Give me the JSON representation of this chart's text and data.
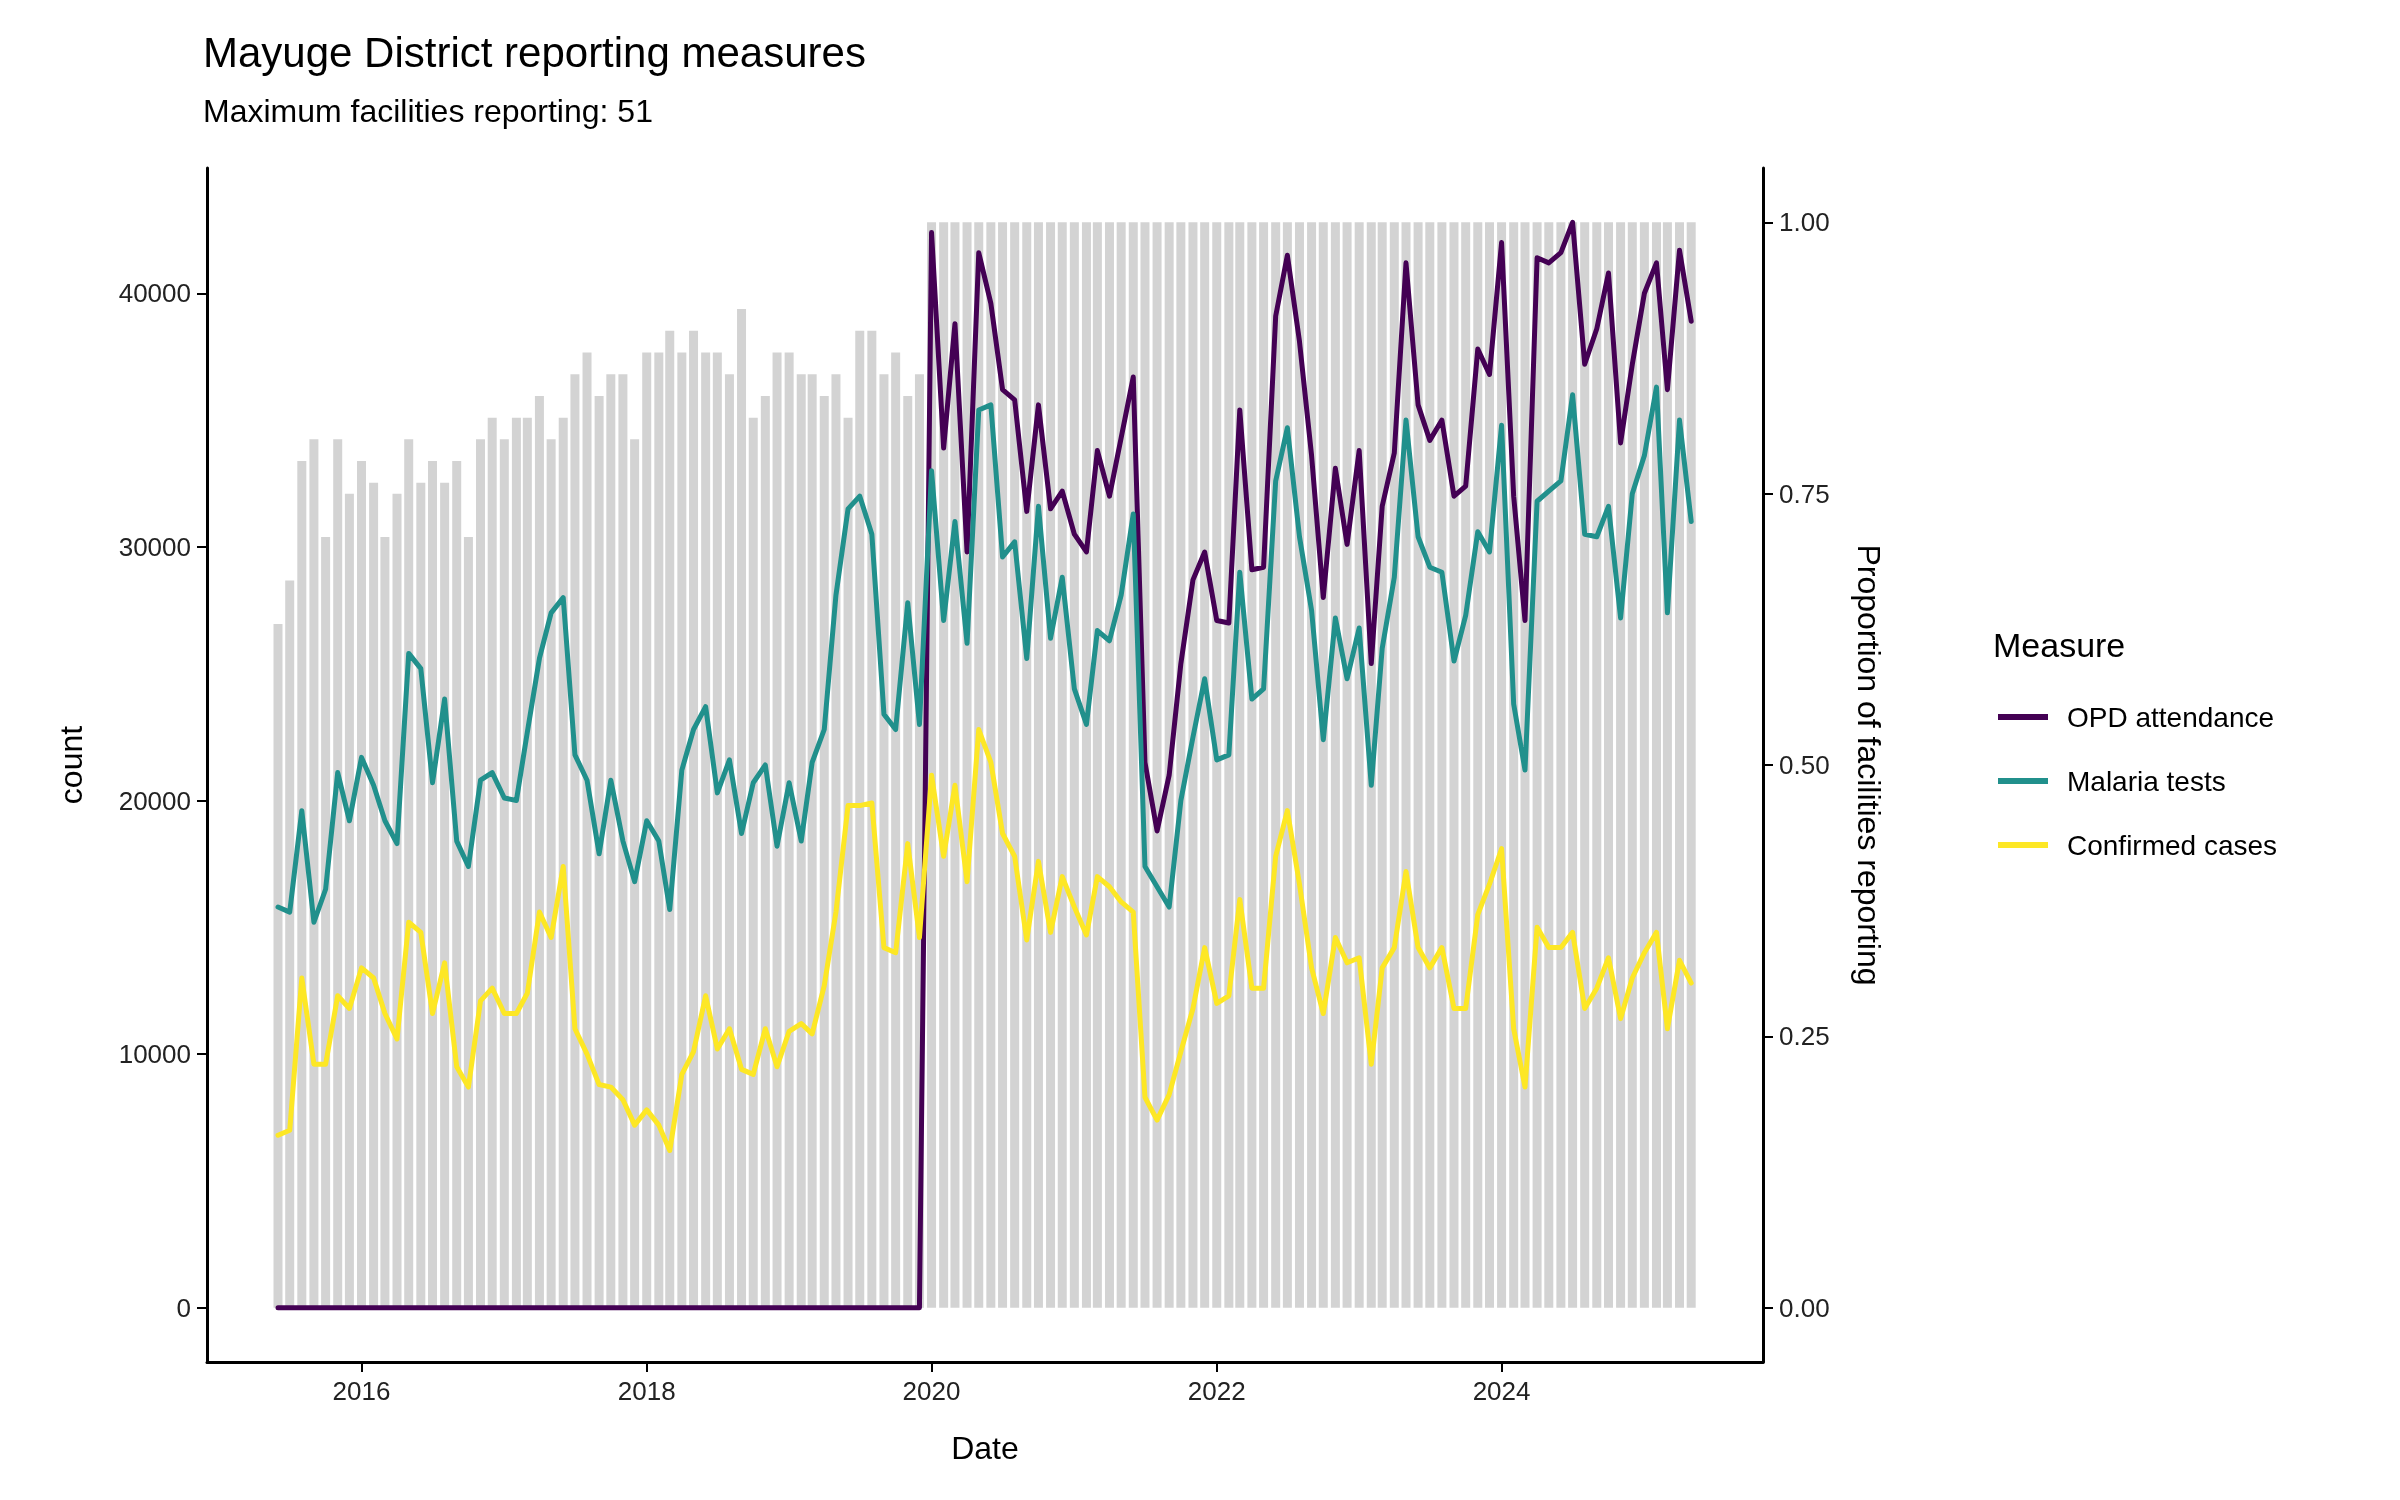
{
  "chart_data": {
    "type": "line",
    "title": "Mayuge District reporting measures",
    "subtitle": "Maximum facilities reporting: 51",
    "xlabel": "Date",
    "ylabel": "count",
    "y2label": "Proportion of facilities reporting",
    "legend_title": "Measure",
    "x": [
      "2015-06",
      "2015-07",
      "2015-08",
      "2015-09",
      "2015-10",
      "2015-11",
      "2015-12",
      "2016-01",
      "2016-02",
      "2016-03",
      "2016-04",
      "2016-05",
      "2016-06",
      "2016-07",
      "2016-08",
      "2016-09",
      "2016-10",
      "2016-11",
      "2016-12",
      "2017-01",
      "2017-02",
      "2017-03",
      "2017-04",
      "2017-05",
      "2017-06",
      "2017-07",
      "2017-08",
      "2017-09",
      "2017-10",
      "2017-11",
      "2017-12",
      "2018-01",
      "2018-02",
      "2018-03",
      "2018-04",
      "2018-05",
      "2018-06",
      "2018-07",
      "2018-08",
      "2018-09",
      "2018-10",
      "2018-11",
      "2018-12",
      "2019-01",
      "2019-02",
      "2019-03",
      "2019-04",
      "2019-05",
      "2019-06",
      "2019-07",
      "2019-08",
      "2019-09",
      "2019-10",
      "2019-11",
      "2019-12",
      "2020-01",
      "2020-02",
      "2020-03",
      "2020-04",
      "2020-05",
      "2020-06",
      "2020-07",
      "2020-08",
      "2020-09",
      "2020-10",
      "2020-11",
      "2020-12",
      "2021-01",
      "2021-02",
      "2021-03",
      "2021-04",
      "2021-05",
      "2021-06",
      "2021-07",
      "2021-08",
      "2021-09",
      "2021-10",
      "2021-11",
      "2021-12",
      "2022-01",
      "2022-02",
      "2022-03",
      "2022-04",
      "2022-05",
      "2022-06",
      "2022-07",
      "2022-08",
      "2022-09",
      "2022-10",
      "2022-11",
      "2022-12",
      "2023-01",
      "2023-02",
      "2023-03",
      "2023-04",
      "2023-05",
      "2023-06",
      "2023-07",
      "2023-08",
      "2023-09",
      "2023-10",
      "2023-11",
      "2023-12",
      "2024-01",
      "2024-02",
      "2024-03",
      "2024-04",
      "2024-05",
      "2024-06",
      "2024-07",
      "2024-08",
      "2024-09",
      "2024-10",
      "2024-11",
      "2024-12",
      "2025-01",
      "2025-02",
      "2025-03",
      "2025-04",
      "2025-05"
    ],
    "series": [
      {
        "type": "bar",
        "axis": "y2",
        "color": "#d3d3d3",
        "values": [
          0.63,
          0.67,
          0.78,
          0.8,
          0.71,
          0.8,
          0.75,
          0.78,
          0.76,
          0.71,
          0.75,
          0.8,
          0.76,
          0.78,
          0.76,
          0.78,
          0.71,
          0.8,
          0.82,
          0.8,
          0.82,
          0.82,
          0.84,
          0.8,
          0.82,
          0.86,
          0.88,
          0.84,
          0.86,
          0.86,
          0.8,
          0.88,
          0.88,
          0.9,
          0.88,
          0.9,
          0.88,
          0.88,
          0.86,
          0.92,
          0.82,
          0.84,
          0.88,
          0.88,
          0.86,
          0.86,
          0.84,
          0.86,
          0.82,
          0.9,
          0.9,
          0.86,
          0.88,
          0.84,
          0.86,
          1,
          1,
          1,
          1,
          1,
          1,
          1,
          1,
          1,
          1,
          1,
          1,
          1,
          1,
          1,
          1,
          1,
          1,
          1,
          1,
          1,
          1,
          1,
          1,
          1,
          1,
          1,
          1,
          1,
          1,
          1,
          1,
          1,
          1,
          1,
          1,
          1,
          1,
          1,
          1,
          1,
          1,
          1,
          1,
          1,
          1,
          1,
          1,
          1,
          1,
          1,
          1,
          1,
          1,
          1,
          1,
          1,
          1,
          1,
          1,
          1,
          1,
          1,
          1,
          1
        ]
      },
      {
        "name": "OPD attendance",
        "color": "#440154",
        "values": [
          0,
          0,
          0,
          0,
          0,
          0,
          0,
          0,
          0,
          0,
          0,
          0,
          0,
          0,
          0,
          0,
          0,
          0,
          0,
          0,
          0,
          0,
          0,
          0,
          0,
          0,
          0,
          0,
          0,
          0,
          0,
          0,
          0,
          0,
          0,
          0,
          0,
          0,
          0,
          0,
          0,
          0,
          0,
          0,
          0,
          0,
          0,
          0,
          0,
          0,
          0,
          0,
          0,
          0,
          0,
          42400,
          33900,
          38800,
          29800,
          41600,
          39600,
          36200,
          35800,
          31400,
          35600,
          31500,
          32200,
          30500,
          29800,
          33800,
          32000,
          34300,
          36700,
          21500,
          18800,
          21000,
          25400,
          28700,
          29800,
          27100,
          27000,
          35400,
          29100,
          29200,
          39100,
          41500,
          38100,
          33600,
          28000,
          33100,
          30100,
          33800,
          25400,
          31600,
          33700,
          41200,
          35600,
          34200,
          35000,
          32000,
          32400,
          37800,
          36800,
          42000,
          32000,
          27100,
          41400,
          41200,
          41600,
          42800,
          37200,
          38600,
          40800,
          34100,
          37200,
          40000,
          41200,
          36200,
          41700,
          38900
        ]
      },
      {
        "name": "Malaria tests",
        "color": "#21908c",
        "values": [
          15800,
          15600,
          19600,
          15200,
          16500,
          21100,
          19200,
          21700,
          20600,
          19200,
          18300,
          25800,
          25200,
          20700,
          24000,
          18400,
          17400,
          20800,
          21100,
          20100,
          20000,
          22700,
          25600,
          27400,
          28000,
          21800,
          20800,
          17900,
          20800,
          18400,
          16800,
          19200,
          18400,
          15700,
          21200,
          22800,
          23700,
          20300,
          21600,
          18700,
          20700,
          21400,
          18200,
          20700,
          18400,
          21500,
          22800,
          28100,
          31500,
          32000,
          30500,
          23400,
          22800,
          27800,
          23000,
          33000,
          27100,
          31000,
          26200,
          35400,
          35600,
          29600,
          30200,
          25600,
          31600,
          26400,
          28800,
          24400,
          23000,
          26700,
          26300,
          28100,
          31300,
          17400,
          16600,
          15800,
          20000,
          22500,
          24800,
          21600,
          21800,
          29000,
          24000,
          24400,
          32600,
          34700,
          30400,
          27500,
          22400,
          27200,
          24800,
          26800,
          20600,
          26000,
          28800,
          35000,
          30400,
          29200,
          29000,
          25500,
          27300,
          30600,
          29800,
          34800,
          23800,
          21200,
          31800,
          32200,
          32600,
          36000,
          30500,
          30400,
          31600,
          27200,
          32100,
          33600,
          36300,
          27400,
          35000,
          31000
        ]
      },
      {
        "name": "Confirmed cases",
        "color": "#fde725",
        "values": [
          6800,
          7000,
          13000,
          9600,
          9600,
          12300,
          11800,
          13400,
          13000,
          11600,
          10600,
          15200,
          14800,
          11600,
          13600,
          9500,
          8700,
          12100,
          12600,
          11600,
          11600,
          12400,
          15600,
          14600,
          17400,
          11000,
          10000,
          8800,
          8700,
          8200,
          7200,
          7800,
          7200,
          6200,
          9200,
          10100,
          12300,
          10200,
          11000,
          9400,
          9200,
          11000,
          9500,
          10900,
          11200,
          10800,
          12700,
          15600,
          19800,
          19800,
          19900,
          14200,
          14000,
          18300,
          14600,
          21000,
          17800,
          20600,
          16800,
          22800,
          21500,
          18700,
          17800,
          14500,
          17600,
          14800,
          17000,
          15800,
          14700,
          17000,
          16600,
          16000,
          15600,
          8300,
          7400,
          8400,
          10100,
          11800,
          14200,
          12000,
          12300,
          16100,
          12600,
          12600,
          17800,
          19600,
          16700,
          13400,
          11600,
          14600,
          13600,
          13800,
          9600,
          13400,
          14200,
          17200,
          14200,
          13400,
          14200,
          11800,
          11800,
          15500,
          16700,
          18100,
          11000,
          8700,
          15000,
          14200,
          14200,
          14800,
          11800,
          12600,
          13800,
          11400,
          13000,
          14000,
          14800,
          11000,
          13700,
          12800
        ]
      }
    ],
    "xlim": [
      "2014-12",
      "2025-11"
    ],
    "xticks": [
      "2016",
      "2018",
      "2020",
      "2022",
      "2024"
    ],
    "ylim": [
      -2140,
      44940
    ],
    "yticks": [
      0,
      10000,
      20000,
      30000,
      40000
    ],
    "y2lim": [
      -0.05,
      1.05
    ],
    "y2ticks": [
      {
        "value": 0,
        "label": "0.00"
      },
      {
        "value": 0.25,
        "label": "0.25"
      },
      {
        "value": 0.5,
        "label": "0.50"
      },
      {
        "value": 0.75,
        "label": "0.75"
      },
      {
        "value": 1,
        "label": "1.00"
      }
    ],
    "grid": false,
    "legend": "right",
    "marker": "none",
    "line_style": "solid"
  }
}
